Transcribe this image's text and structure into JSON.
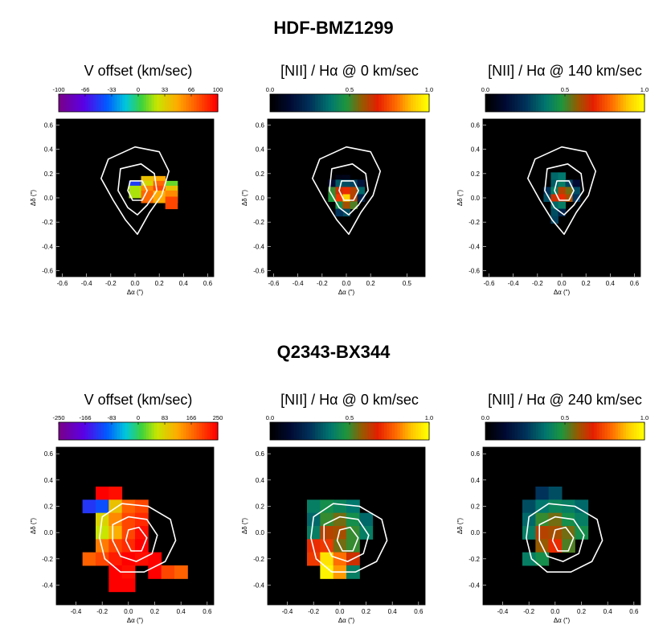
{
  "figure": {
    "rows": [
      {
        "title": "HDF-BMZ1299",
        "panels": [
          {
            "title": "V offset (km/sec)",
            "colormap": "rainbow",
            "colorbar_ticks": [
              "-100",
              "-66",
              "-33",
              "0",
              "33",
              "66",
              "100"
            ],
            "x_ticks": [
              "-0.6",
              "-0.4",
              "-0.2",
              "0.0",
              "0.2",
              "0.4",
              "0.6"
            ],
            "y_ticks": [
              "0.6",
              "0.4",
              "0.2",
              "0.0",
              "-0.2",
              "-0.4",
              "-0.6"
            ],
            "xlabel": "Δα (\")",
            "ylabel": "Δδ (\")"
          },
          {
            "title": "[NII] / Hα @ 0 km/sec",
            "colormap": "heat",
            "colorbar_ticks": [
              "0.0",
              "0.5",
              "1.0"
            ],
            "x_ticks": [
              "-0.6",
              "-0.4",
              "-0.2",
              "0.0",
              "0.2",
              "0.5"
            ],
            "y_ticks": [
              "0.6",
              "0.4",
              "0.2",
              "0.0",
              "-0.2",
              "-0.4",
              "-0.6"
            ],
            "xlabel": "Δα (\")",
            "ylabel": "Δδ (\")"
          },
          {
            "title": "[NII] / Hα @ 140 km/sec",
            "colormap": "heat",
            "colorbar_ticks": [
              "0.0",
              "0.5",
              "1.0"
            ],
            "x_ticks": [
              "-0.6",
              "-0.4",
              "-0.2",
              "0.0",
              "0.2",
              "0.4",
              "0.6"
            ],
            "y_ticks": [
              "0.6",
              "0.4",
              "0.2",
              "0.0",
              "-0.2",
              "-0.4",
              "-0.6"
            ],
            "xlabel": "Δα (\")",
            "ylabel": "Δδ (\")"
          }
        ]
      },
      {
        "title": "Q2343-BX344",
        "panels": [
          {
            "title": "V offset (km/sec)",
            "colormap": "rainbow",
            "colorbar_ticks": [
              "-250",
              "-166",
              "-83",
              "0",
              "83",
              "166",
              "250"
            ],
            "x_ticks": [
              "-0.4",
              "-0.2",
              "0.0",
              "0.2",
              "0.4",
              "0.6"
            ],
            "y_ticks": [
              "0.6",
              "0.4",
              "0.2",
              "0.0",
              "-0.2",
              "-0.4"
            ],
            "xlabel": "Δα (\")",
            "ylabel": "Δδ (\")"
          },
          {
            "title": "[NII] / Hα @ 0 km/sec",
            "colormap": "heat",
            "colorbar_ticks": [
              "0.0",
              "0.5",
              "1.0"
            ],
            "x_ticks": [
              "-0.4",
              "-0.2",
              "0.0",
              "0.2",
              "0.4",
              "0.6"
            ],
            "y_ticks": [
              "0.6",
              "0.4",
              "0.2",
              "0.0",
              "-0.2",
              "-0.4"
            ],
            "xlabel": "Δα (\")",
            "ylabel": "Δδ (\")"
          },
          {
            "title": "[NII] / Hα @ 240 km/sec",
            "colormap": "heat",
            "colorbar_ticks": [
              "0.0",
              "0.5",
              "1.0"
            ],
            "x_ticks": [
              "-0.4",
              "-0.2",
              "0.0",
              "0.2",
              "0.4",
              "0.6"
            ],
            "y_ticks": [
              "0.6",
              "0.4",
              "0.2",
              "0.0",
              "-0.2",
              "-0.4"
            ],
            "xlabel": "Δα (\")",
            "ylabel": "Δδ (\")"
          }
        ]
      }
    ]
  },
  "chart_data": [
    {
      "type": "heatmap",
      "title": "HDF-BMZ1299 — V offset (km/sec)",
      "value_range": [
        -100,
        100
      ],
      "cells": [
        [
          0.1,
          0.13,
          40
        ],
        [
          0.2,
          0.13,
          50
        ],
        [
          0.0,
          0.09,
          -50
        ],
        [
          0.1,
          0.09,
          30
        ],
        [
          0.2,
          0.09,
          70
        ],
        [
          0.3,
          0.09,
          10
        ],
        [
          0.0,
          0.05,
          20
        ],
        [
          0.1,
          0.05,
          60
        ],
        [
          0.2,
          0.05,
          80
        ],
        [
          0.3,
          0.05,
          40
        ],
        [
          0.1,
          0.01,
          70
        ],
        [
          0.2,
          0.01,
          50
        ],
        [
          0.3,
          0.01,
          60
        ],
        [
          0.3,
          -0.04,
          80
        ]
      ]
    },
    {
      "type": "heatmap",
      "title": "HDF-BMZ1299 — [NII] / Hα @ 0 km/sec",
      "value_range": [
        0,
        1
      ],
      "cells": [
        [
          -0.06,
          0.16,
          0.05
        ],
        [
          0.0,
          0.16,
          0.06
        ],
        [
          -0.12,
          0.12,
          0.12
        ],
        [
          -0.06,
          0.12,
          0.32
        ],
        [
          0.0,
          0.12,
          0.3
        ],
        [
          0.06,
          0.12,
          0.28
        ],
        [
          0.12,
          0.12,
          0.15
        ],
        [
          -0.12,
          0.06,
          0.5
        ],
        [
          -0.06,
          0.06,
          0.65
        ],
        [
          0.0,
          0.06,
          0.7
        ],
        [
          0.06,
          0.06,
          0.62
        ],
        [
          0.12,
          0.06,
          0.35
        ],
        [
          -0.12,
          0.0,
          0.48
        ],
        [
          -0.06,
          0.0,
          0.72
        ],
        [
          0.0,
          0.0,
          0.92
        ],
        [
          0.06,
          0.0,
          0.62
        ],
        [
          0.12,
          0.0,
          0.2
        ],
        [
          -0.06,
          -0.06,
          0.45
        ],
        [
          0.0,
          -0.06,
          0.6
        ],
        [
          0.06,
          -0.06,
          0.52
        ],
        [
          0.0,
          -0.12,
          0.3
        ],
        [
          -0.06,
          -0.12,
          0.25
        ]
      ]
    },
    {
      "type": "heatmap",
      "title": "HDF-BMZ1299 — [NII] / Hα @ 140 km/sec",
      "value_range": [
        0,
        1
      ],
      "cells": [
        [
          -0.06,
          0.18,
          0.35
        ],
        [
          0.0,
          0.18,
          0.38
        ],
        [
          -0.06,
          0.12,
          0.33
        ],
        [
          0.0,
          0.12,
          0.4
        ],
        [
          0.06,
          0.12,
          0.28
        ],
        [
          0.12,
          0.12,
          0.12
        ],
        [
          -0.12,
          0.06,
          0.25
        ],
        [
          -0.06,
          0.06,
          0.4
        ],
        [
          0.0,
          0.06,
          0.62
        ],
        [
          0.06,
          0.06,
          0.55
        ],
        [
          0.12,
          0.06,
          0.3
        ],
        [
          -0.12,
          0.0,
          0.3
        ],
        [
          -0.06,
          0.0,
          0.65
        ],
        [
          0.0,
          0.0,
          0.7
        ],
        [
          0.06,
          0.0,
          0.6
        ],
        [
          0.12,
          0.0,
          0.25
        ],
        [
          -0.06,
          -0.06,
          0.35
        ],
        [
          0.0,
          -0.06,
          0.4
        ],
        [
          -0.06,
          -0.12,
          0.3
        ],
        [
          -0.06,
          -0.18,
          0.28
        ],
        [
          0.0,
          -0.12,
          0.2
        ]
      ]
    },
    {
      "type": "heatmap",
      "title": "Q2343-BX344 — V offset (km/sec)",
      "value_range": [
        -250,
        250
      ],
      "cells": [
        [
          -0.2,
          0.3,
          250
        ],
        [
          -0.1,
          0.3,
          240
        ],
        [
          -0.3,
          0.2,
          -130
        ],
        [
          -0.2,
          0.2,
          -110
        ],
        [
          -0.1,
          0.2,
          100
        ],
        [
          0.0,
          0.2,
          180
        ],
        [
          0.1,
          0.2,
          200
        ],
        [
          -0.2,
          0.1,
          80
        ],
        [
          -0.1,
          0.1,
          150
        ],
        [
          0.0,
          0.1,
          200
        ],
        [
          0.1,
          0.1,
          220
        ],
        [
          -0.2,
          0.0,
          60
        ],
        [
          -0.1,
          0.0,
          120
        ],
        [
          0.0,
          0.0,
          200
        ],
        [
          0.1,
          0.0,
          240
        ],
        [
          -0.2,
          -0.1,
          160
        ],
        [
          -0.1,
          -0.1,
          200
        ],
        [
          0.0,
          -0.1,
          220
        ],
        [
          0.1,
          -0.1,
          250
        ],
        [
          -0.3,
          -0.2,
          180
        ],
        [
          -0.2,
          -0.2,
          200
        ],
        [
          -0.1,
          -0.2,
          230
        ],
        [
          0.0,
          -0.2,
          250
        ],
        [
          0.1,
          -0.2,
          240
        ],
        [
          0.2,
          -0.2,
          250
        ],
        [
          -0.1,
          -0.3,
          250
        ],
        [
          0.0,
          -0.3,
          240
        ],
        [
          0.2,
          -0.3,
          250
        ],
        [
          0.3,
          -0.3,
          200
        ],
        [
          0.4,
          -0.3,
          180
        ],
        [
          -0.1,
          -0.4,
          250
        ],
        [
          0.0,
          -0.4,
          250
        ]
      ]
    },
    {
      "type": "heatmap",
      "title": "Q2343-BX344 — [NII] / Hα @ 0 km/sec",
      "value_range": [
        0,
        1
      ],
      "cells": [
        [
          -0.2,
          0.2,
          0.4
        ],
        [
          -0.1,
          0.2,
          0.45
        ],
        [
          0.0,
          0.2,
          0.42
        ],
        [
          0.1,
          0.2,
          0.38
        ],
        [
          -0.2,
          0.1,
          0.35
        ],
        [
          -0.1,
          0.1,
          0.5
        ],
        [
          0.0,
          0.1,
          0.55
        ],
        [
          0.1,
          0.1,
          0.45
        ],
        [
          0.2,
          0.1,
          0.35
        ],
        [
          -0.2,
          0.0,
          0.4
        ],
        [
          -0.1,
          0.0,
          0.62
        ],
        [
          0.0,
          0.0,
          0.6
        ],
        [
          0.1,
          0.0,
          0.5
        ],
        [
          0.2,
          0.0,
          0.4
        ],
        [
          -0.2,
          -0.1,
          0.7
        ],
        [
          -0.1,
          -0.1,
          0.72
        ],
        [
          0.0,
          -0.1,
          0.55
        ],
        [
          0.1,
          -0.1,
          0.5
        ],
        [
          -0.2,
          -0.2,
          0.72
        ],
        [
          -0.1,
          -0.2,
          0.95
        ],
        [
          0.0,
          -0.2,
          0.8
        ],
        [
          0.1,
          -0.2,
          0.65
        ],
        [
          -0.1,
          -0.3,
          0.98
        ],
        [
          0.0,
          -0.3,
          0.85
        ],
        [
          0.1,
          -0.3,
          0.4
        ]
      ]
    },
    {
      "type": "heatmap",
      "title": "Q2343-BX344 — [NII] / Hα @ 240 km/sec",
      "value_range": [
        0,
        1
      ],
      "cells": [
        [
          -0.1,
          0.3,
          0.25
        ],
        [
          0.0,
          0.3,
          0.3
        ],
        [
          -0.2,
          0.2,
          0.3
        ],
        [
          -0.1,
          0.2,
          0.38
        ],
        [
          0.0,
          0.2,
          0.42
        ],
        [
          0.1,
          0.2,
          0.4
        ],
        [
          0.2,
          0.2,
          0.35
        ],
        [
          -0.2,
          0.1,
          0.35
        ],
        [
          -0.1,
          0.1,
          0.5
        ],
        [
          0.0,
          0.1,
          0.55
        ],
        [
          0.1,
          0.1,
          0.45
        ],
        [
          0.2,
          0.1,
          0.4
        ],
        [
          -0.2,
          0.0,
          0.4
        ],
        [
          -0.1,
          0.0,
          0.62
        ],
        [
          0.0,
          0.0,
          0.6
        ],
        [
          0.1,
          0.0,
          0.55
        ],
        [
          0.2,
          0.0,
          0.45
        ],
        [
          -0.1,
          -0.1,
          0.58
        ],
        [
          0.0,
          -0.1,
          0.7
        ],
        [
          0.1,
          -0.1,
          0.52
        ],
        [
          -0.2,
          -0.2,
          0.4
        ],
        [
          -0.1,
          -0.2,
          0.45
        ]
      ]
    }
  ]
}
